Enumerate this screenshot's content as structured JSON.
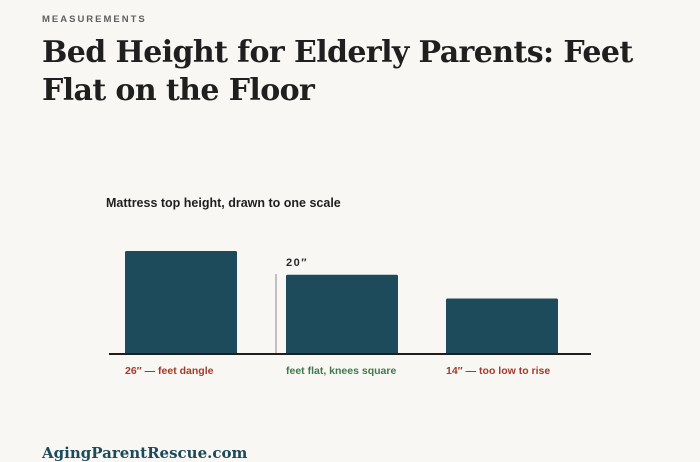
{
  "header": {
    "eyebrow": "MEASUREMENTS",
    "title": "Bed Height for Elderly Parents: Feet Flat on the Floor"
  },
  "chart_data": {
    "type": "bar",
    "title": "Mattress top height, drawn to one scale",
    "xlabel": "",
    "ylabel": "",
    "categories": [
      "26″ — feet dangle",
      "feet flat, knees square",
      "14″ — too low to rise"
    ],
    "values": [
      26,
      20,
      14
    ],
    "category_colors": [
      "#a33a2a",
      "#3f7a4c",
      "#a33a2a"
    ],
    "bar_color": "#1d4b5b",
    "annotation": {
      "category_index": 1,
      "text": "20″"
    },
    "ylim": [
      0,
      26
    ],
    "grid": false
  },
  "footer": {
    "site": "AgingParentRescue.com"
  }
}
